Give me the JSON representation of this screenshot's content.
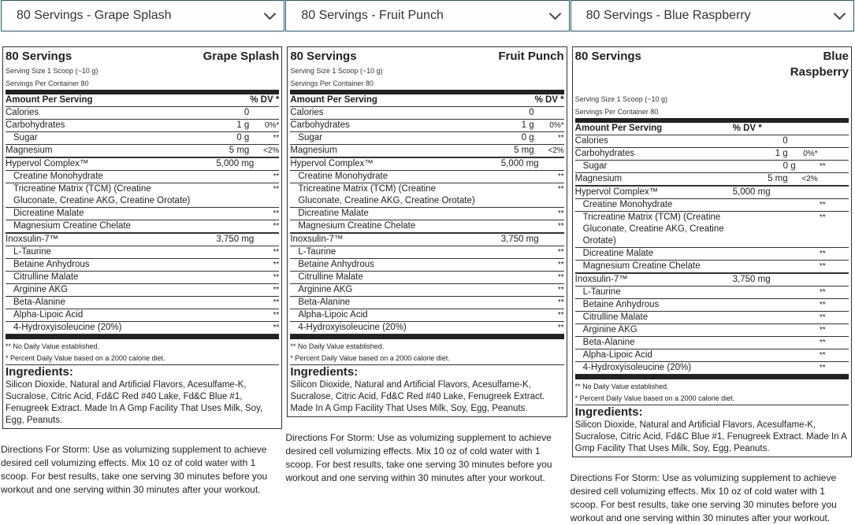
{
  "columns": [
    {
      "select": "80 Servings - Grape Splash",
      "servings": "80 Servings",
      "flavor": "Grape Splash"
    },
    {
      "select": "80 Servings - Fruit Punch",
      "servings": "80 Servings",
      "flavor": "Fruit Punch"
    },
    {
      "select": "80 Servings - Blue Raspberry",
      "servings": "80 Servings",
      "flavor": "Blue Raspberry"
    }
  ],
  "label": {
    "serving_size": "Serving Size 1 Scoop (~10 g)",
    "servings_per_container": "Servings Per Container 80",
    "amount_header": "Amount Per Serving",
    "dv_header": "% DV *",
    "rows": [
      {
        "name": "Calories",
        "amount": "0",
        "dv": ""
      },
      {
        "name": "Carbohydrates",
        "amount": "1 g",
        "dv": "0%*"
      },
      {
        "name": "Sugar",
        "amount": "0 g",
        "dv": "**",
        "indent": true
      },
      {
        "name": "Magnesium",
        "amount": "5 mg",
        "dv": "<2%",
        "thick": true
      },
      {
        "name": "Hypervol Complex™",
        "amount": "5,000 mg",
        "dv": "",
        "mid": true
      },
      {
        "name": "Creatine Monohydrate",
        "amount": "",
        "dv": "**",
        "indent": true
      },
      {
        "name": "Tricreatine Matrix (TCM) (Creatine Gluconate, Creatine AKG, Creatine Orotate)",
        "amount": "",
        "dv": "**",
        "indent": true
      },
      {
        "name": "Dicreatine Malate",
        "amount": "",
        "dv": "**",
        "indent": true
      },
      {
        "name": "Magnesium Creatine Chelate",
        "amount": "",
        "dv": "**",
        "indent": true,
        "thick": true
      },
      {
        "name": "Inoxsulin-7™",
        "amount": "3,750 mg",
        "dv": "",
        "mid": true
      },
      {
        "name": "L-Taurine",
        "amount": "",
        "dv": "**",
        "indent": true
      },
      {
        "name": "Betaine Anhydrous",
        "amount": "",
        "dv": "**",
        "indent": true
      },
      {
        "name": "Citrulline Malate",
        "amount": "",
        "dv": "**",
        "indent": true
      },
      {
        "name": "Arginine AKG",
        "amount": "",
        "dv": "**",
        "indent": true
      },
      {
        "name": "Beta-Alanine",
        "amount": "",
        "dv": "**",
        "indent": true
      },
      {
        "name": "Alpha-Lipoic Acid",
        "amount": "",
        "dv": "**",
        "indent": true
      },
      {
        "name": "4-Hydroxyisoleucine (20%)",
        "amount": "",
        "dv": "**",
        "indent": true
      }
    ],
    "foot1": "** No Daily Value established.",
    "foot2": "* Percent Daily Value based on a 2000 calorie diet.",
    "ingredients_title": "Ingredients:"
  },
  "ingredients": [
    "Silicon Dioxide, Natural and Artificial Flavors, Acesulfame-K, Sucralose, Citric Acid, Fd&C Red #40 Lake, Fd&C Blue #1, Fenugreek Extract. Made In A Gmp Facility That Uses Milk, Soy, Egg, Peanuts.",
    "Silicon Dioxide, Natural and Artificial Flavors, Acesulfame-K, Sucralose, Citric Acid, Fd&C Red #40 Lake, Fenugreek Extract. Made In A Gmp Facility That Uses Milk, Soy, Egg, Peanuts.",
    "Silicon Dioxide, Natural and Artificial Flavors, Acesulfame-K, Sucralose, Citric Acid, Fd&C Blue #1, Fenugreek Extract. Made In A Gmp Facility That Uses Milk, Soy, Egg, Peanuts."
  ],
  "directions": "Directions For Storm: Use as volumizing supplement to achieve desired cell volumizing effects. Mix 10 oz of cold water with 1 scoop. For best results, take one serving 30 minutes before you workout and one serving within 30 minutes after your workout."
}
